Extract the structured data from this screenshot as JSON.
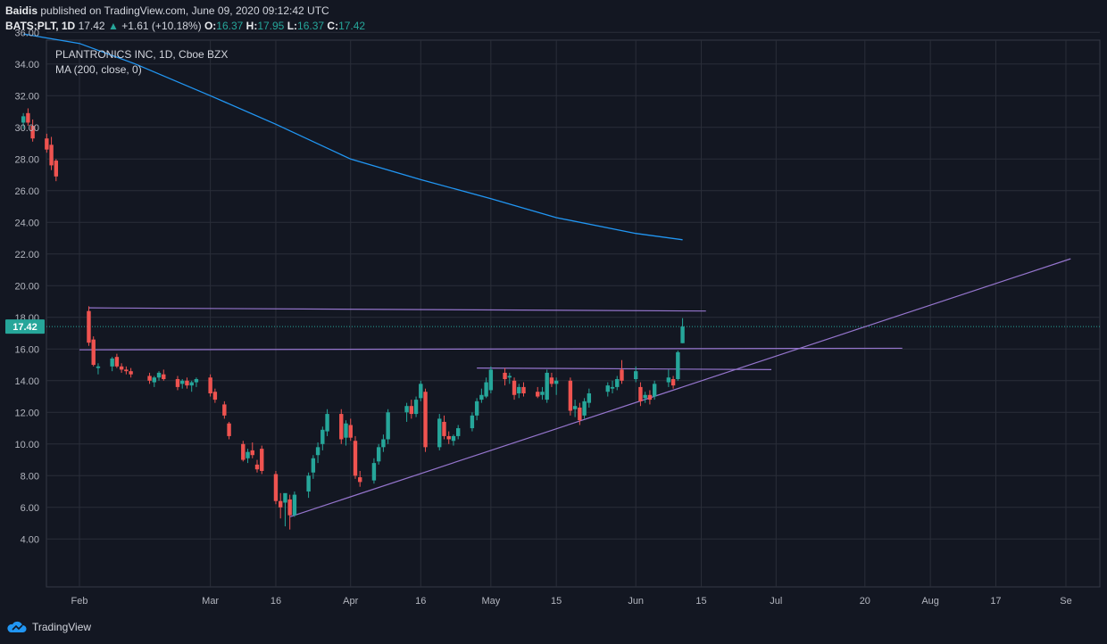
{
  "header": {
    "author": "Baidis",
    "published_text": "published on TradingView.com, June 09, 2020 09:12:42 UTC",
    "symbol": "BATS:PLT, 1D",
    "last": "17.42",
    "change": "+1.61 (+10.18%)",
    "o_label": "O:",
    "o_value": "16.37",
    "h_label": "H:",
    "h_value": "17.95",
    "l_label": "L:",
    "l_value": "16.37",
    "c_label": "C:",
    "c_value": "17.42"
  },
  "legend": {
    "title": "PLANTRONICS INC, 1D, Cboe BZX",
    "indicator": "MA (200, close, 0)"
  },
  "footer": {
    "brand": "TradingView"
  },
  "colors": {
    "background": "#131722",
    "grid": "#2a2e39",
    "up": "#26a69a",
    "down": "#ef5350",
    "ma": "#2196f3",
    "trendline": "#9575cd",
    "axis_text": "#b2b5be",
    "price_tag": "#26a69a"
  },
  "chart_data": {
    "type": "candlestick",
    "title": "PLANTRONICS INC, 1D, Cboe BZX",
    "ylim": [
      3,
      39.5
    ],
    "y_ticks": [
      "4.00",
      "6.00",
      "8.00",
      "10.00",
      "12.00",
      "14.00",
      "16.00",
      "18.00",
      "20.00",
      "22.00",
      "24.00",
      "26.00",
      "28.00",
      "30.00",
      "32.00",
      "34.00",
      "36.00"
    ],
    "x_tick_labels": [
      "Feb",
      "Mar",
      "16",
      "Apr",
      "16",
      "May",
      "15",
      "Jun",
      "15",
      "Jul",
      "20",
      "Aug",
      "17",
      "Se"
    ],
    "x_tick_dates": [
      "2020-02-03",
      "2020-03-02",
      "2020-03-16",
      "2020-04-01",
      "2020-04-16",
      "2020-05-01",
      "2020-05-15",
      "2020-06-01",
      "2020-06-15",
      "2020-07-01",
      "2020-07-20",
      "2020-08-03",
      "2020-08-17",
      "2020-09-01"
    ],
    "last_price_label": "17.42",
    "last_price": 17.42,
    "candles": [
      {
        "d": "2020-01-22",
        "o": 30.3,
        "h": 30.9,
        "l": 29.9,
        "c": 30.7
      },
      {
        "d": "2020-01-23",
        "o": 30.9,
        "h": 31.2,
        "l": 30.1,
        "c": 30.3
      },
      {
        "d": "2020-01-24",
        "o": 30.1,
        "h": 30.5,
        "l": 29.1,
        "c": 29.3
      },
      {
        "d": "2020-01-27",
        "o": 29.3,
        "h": 29.6,
        "l": 28.4,
        "c": 28.6
      },
      {
        "d": "2020-01-28",
        "o": 28.9,
        "h": 29.4,
        "l": 27.3,
        "c": 27.6
      },
      {
        "d": "2020-01-29",
        "o": 27.9,
        "h": 28.0,
        "l": 26.6,
        "c": 26.9
      },
      {
        "d": "2020-02-05",
        "o": 18.4,
        "h": 18.7,
        "l": 16.2,
        "c": 16.4
      },
      {
        "d": "2020-02-06",
        "o": 16.6,
        "h": 16.8,
        "l": 14.9,
        "c": 15.0
      },
      {
        "d": "2020-02-07",
        "o": 14.8,
        "h": 15.1,
        "l": 14.4,
        "c": 14.9
      },
      {
        "d": "2020-02-10",
        "o": 14.9,
        "h": 15.5,
        "l": 14.6,
        "c": 15.4
      },
      {
        "d": "2020-02-11",
        "o": 15.5,
        "h": 15.7,
        "l": 14.8,
        "c": 14.9
      },
      {
        "d": "2020-02-12",
        "o": 14.9,
        "h": 15.1,
        "l": 14.5,
        "c": 14.7
      },
      {
        "d": "2020-02-13",
        "o": 14.7,
        "h": 14.9,
        "l": 14.4,
        "c": 14.6
      },
      {
        "d": "2020-02-14",
        "o": 14.6,
        "h": 14.8,
        "l": 14.2,
        "c": 14.4
      },
      {
        "d": "2020-02-18",
        "o": 14.3,
        "h": 14.5,
        "l": 13.8,
        "c": 14.0
      },
      {
        "d": "2020-02-19",
        "o": 13.9,
        "h": 14.3,
        "l": 13.6,
        "c": 14.2
      },
      {
        "d": "2020-02-20",
        "o": 14.2,
        "h": 14.6,
        "l": 14.0,
        "c": 14.5
      },
      {
        "d": "2020-02-21",
        "o": 14.4,
        "h": 14.7,
        "l": 14.0,
        "c": 14.1
      },
      {
        "d": "2020-02-24",
        "o": 14.1,
        "h": 14.3,
        "l": 13.4,
        "c": 13.6
      },
      {
        "d": "2020-02-25",
        "o": 13.8,
        "h": 14.1,
        "l": 13.5,
        "c": 14.0
      },
      {
        "d": "2020-02-26",
        "o": 14.0,
        "h": 14.2,
        "l": 13.5,
        "c": 13.7
      },
      {
        "d": "2020-02-27",
        "o": 13.7,
        "h": 14.0,
        "l": 13.3,
        "c": 13.9
      },
      {
        "d": "2020-02-28",
        "o": 13.9,
        "h": 14.2,
        "l": 13.6,
        "c": 14.1
      },
      {
        "d": "2020-03-02",
        "o": 14.2,
        "h": 14.4,
        "l": 13.0,
        "c": 13.2
      },
      {
        "d": "2020-03-03",
        "o": 13.3,
        "h": 13.5,
        "l": 12.6,
        "c": 12.8
      },
      {
        "d": "2020-03-05",
        "o": 12.5,
        "h": 12.7,
        "l": 11.6,
        "c": 11.8
      },
      {
        "d": "2020-03-06",
        "o": 11.3,
        "h": 11.4,
        "l": 10.3,
        "c": 10.5
      },
      {
        "d": "2020-03-09",
        "o": 10.0,
        "h": 10.2,
        "l": 8.9,
        "c": 9.0
      },
      {
        "d": "2020-03-10",
        "o": 9.1,
        "h": 9.7,
        "l": 8.8,
        "c": 9.5
      },
      {
        "d": "2020-03-11",
        "o": 9.6,
        "h": 10.1,
        "l": 9.1,
        "c": 9.3
      },
      {
        "d": "2020-03-12",
        "o": 8.7,
        "h": 9.0,
        "l": 8.2,
        "c": 8.4
      },
      {
        "d": "2020-03-13",
        "o": 9.7,
        "h": 9.9,
        "l": 8.1,
        "c": 8.3
      },
      {
        "d": "2020-03-16",
        "o": 8.1,
        "h": 8.3,
        "l": 6.2,
        "c": 6.4
      },
      {
        "d": "2020-03-17",
        "o": 6.4,
        "h": 6.9,
        "l": 5.3,
        "c": 6.0
      },
      {
        "d": "2020-03-18",
        "o": 6.3,
        "h": 6.7,
        "l": 4.8,
        "c": 6.9
      },
      {
        "d": "2020-03-19",
        "o": 6.5,
        "h": 6.8,
        "l": 4.6,
        "c": 5.5
      },
      {
        "d": "2020-03-20",
        "o": 5.5,
        "h": 7.0,
        "l": 5.4,
        "c": 6.8
      },
      {
        "d": "2020-03-23",
        "o": 7.0,
        "h": 8.2,
        "l": 6.6,
        "c": 8.0
      },
      {
        "d": "2020-03-24",
        "o": 8.2,
        "h": 9.3,
        "l": 7.8,
        "c": 9.1
      },
      {
        "d": "2020-03-25",
        "o": 9.3,
        "h": 10.1,
        "l": 8.8,
        "c": 9.8
      },
      {
        "d": "2020-03-26",
        "o": 10.0,
        "h": 11.1,
        "l": 9.6,
        "c": 10.9
      },
      {
        "d": "2020-03-27",
        "o": 10.8,
        "h": 12.2,
        "l": 10.5,
        "c": 11.9
      },
      {
        "d": "2020-03-30",
        "o": 11.9,
        "h": 12.2,
        "l": 10.0,
        "c": 10.3
      },
      {
        "d": "2020-03-31",
        "o": 10.4,
        "h": 11.5,
        "l": 9.9,
        "c": 11.3
      },
      {
        "d": "2020-04-01",
        "o": 11.2,
        "h": 11.6,
        "l": 10.2,
        "c": 10.4
      },
      {
        "d": "2020-04-02",
        "o": 10.2,
        "h": 10.5,
        "l": 7.8,
        "c": 8.0
      },
      {
        "d": "2020-04-03",
        "o": 7.9,
        "h": 8.3,
        "l": 7.3,
        "c": 7.6
      },
      {
        "d": "2020-04-06",
        "o": 7.7,
        "h": 9.1,
        "l": 7.5,
        "c": 8.8
      },
      {
        "d": "2020-04-07",
        "o": 8.9,
        "h": 10.0,
        "l": 8.7,
        "c": 9.8
      },
      {
        "d": "2020-04-08",
        "o": 9.8,
        "h": 10.6,
        "l": 9.5,
        "c": 10.3
      },
      {
        "d": "2020-04-09",
        "o": 10.3,
        "h": 12.2,
        "l": 10.0,
        "c": 12.0
      },
      {
        "d": "2020-04-13",
        "o": 12.0,
        "h": 12.6,
        "l": 11.4,
        "c": 12.4
      },
      {
        "d": "2020-04-14",
        "o": 12.4,
        "h": 12.8,
        "l": 11.6,
        "c": 11.9
      },
      {
        "d": "2020-04-15",
        "o": 11.9,
        "h": 13.0,
        "l": 11.7,
        "c": 12.8
      },
      {
        "d": "2020-04-16",
        "o": 12.9,
        "h": 14.0,
        "l": 12.7,
        "c": 13.8
      },
      {
        "d": "2020-04-17",
        "o": 13.3,
        "h": 13.5,
        "l": 9.5,
        "c": 9.8
      },
      {
        "d": "2020-04-20",
        "o": 9.8,
        "h": 11.9,
        "l": 9.6,
        "c": 11.6
      },
      {
        "d": "2020-04-21",
        "o": 11.4,
        "h": 11.8,
        "l": 10.3,
        "c": 10.5
      },
      {
        "d": "2020-04-22",
        "o": 10.5,
        "h": 10.8,
        "l": 10.0,
        "c": 10.3
      },
      {
        "d": "2020-04-23",
        "o": 10.2,
        "h": 10.6,
        "l": 9.9,
        "c": 10.5
      },
      {
        "d": "2020-04-24",
        "o": 10.5,
        "h": 11.2,
        "l": 10.3,
        "c": 11.0
      },
      {
        "d": "2020-04-27",
        "o": 11.0,
        "h": 12.0,
        "l": 10.8,
        "c": 11.8
      },
      {
        "d": "2020-04-28",
        "o": 11.8,
        "h": 12.9,
        "l": 11.5,
        "c": 12.7
      },
      {
        "d": "2020-04-29",
        "o": 12.8,
        "h": 13.5,
        "l": 12.6,
        "c": 13.1
      },
      {
        "d": "2020-04-30",
        "o": 13.0,
        "h": 14.2,
        "l": 12.9,
        "c": 13.9
      },
      {
        "d": "2020-05-01",
        "o": 13.4,
        "h": 14.9,
        "l": 13.2,
        "c": 14.7
      },
      {
        "d": "2020-05-04",
        "o": 14.5,
        "h": 14.8,
        "l": 13.7,
        "c": 14.1
      },
      {
        "d": "2020-05-05",
        "o": 14.2,
        "h": 14.5,
        "l": 13.8,
        "c": 14.3
      },
      {
        "d": "2020-05-06",
        "o": 14.0,
        "h": 14.2,
        "l": 12.8,
        "c": 13.1
      },
      {
        "d": "2020-05-07",
        "o": 13.2,
        "h": 13.8,
        "l": 12.9,
        "c": 13.6
      },
      {
        "d": "2020-05-08",
        "o": 13.6,
        "h": 13.9,
        "l": 13.0,
        "c": 13.2
      },
      {
        "d": "2020-05-11",
        "o": 13.3,
        "h": 13.6,
        "l": 12.9,
        "c": 13.0
      },
      {
        "d": "2020-05-12",
        "o": 13.1,
        "h": 13.6,
        "l": 12.8,
        "c": 13.3
      },
      {
        "d": "2020-05-13",
        "o": 12.8,
        "h": 14.7,
        "l": 12.6,
        "c": 14.5
      },
      {
        "d": "2020-05-14",
        "o": 14.2,
        "h": 14.5,
        "l": 13.6,
        "c": 13.8
      },
      {
        "d": "2020-05-15",
        "o": 13.8,
        "h": 14.2,
        "l": 13.1,
        "c": 14.0
      },
      {
        "d": "2020-05-18",
        "o": 14.0,
        "h": 14.2,
        "l": 11.8,
        "c": 12.1
      },
      {
        "d": "2020-05-19",
        "o": 12.2,
        "h": 12.8,
        "l": 11.7,
        "c": 12.4
      },
      {
        "d": "2020-05-20",
        "o": 12.3,
        "h": 12.6,
        "l": 11.2,
        "c": 11.5
      },
      {
        "d": "2020-05-21",
        "o": 11.8,
        "h": 12.9,
        "l": 11.6,
        "c": 12.7
      },
      {
        "d": "2020-05-22",
        "o": 12.6,
        "h": 13.5,
        "l": 12.3,
        "c": 13.2
      },
      {
        "d": "2020-05-26",
        "o": 13.3,
        "h": 13.9,
        "l": 13.0,
        "c": 13.7
      },
      {
        "d": "2020-05-27",
        "o": 13.5,
        "h": 14.0,
        "l": 13.2,
        "c": 13.6
      },
      {
        "d": "2020-05-28",
        "o": 13.6,
        "h": 14.3,
        "l": 13.4,
        "c": 14.1
      },
      {
        "d": "2020-05-29",
        "o": 14.7,
        "h": 15.3,
        "l": 13.8,
        "c": 14.0
      },
      {
        "d": "2020-06-01",
        "o": 14.1,
        "h": 14.9,
        "l": 13.9,
        "c": 14.6
      },
      {
        "d": "2020-06-02",
        "o": 13.6,
        "h": 13.9,
        "l": 12.4,
        "c": 12.7
      },
      {
        "d": "2020-06-03",
        "o": 12.9,
        "h": 13.3,
        "l": 12.6,
        "c": 13.1
      },
      {
        "d": "2020-06-04",
        "o": 13.1,
        "h": 13.4,
        "l": 12.5,
        "c": 12.8
      },
      {
        "d": "2020-06-05",
        "o": 13.0,
        "h": 14.0,
        "l": 12.8,
        "c": 13.8
      },
      {
        "d": "2020-06-08",
        "o": 13.9,
        "h": 14.7,
        "l": 13.6,
        "c": 14.2
      },
      {
        "d": "2020-06-09",
        "o": 14.1,
        "h": 14.3,
        "l": 13.5,
        "c": 13.7
      },
      {
        "d": "2020-06-10",
        "o": 14.1,
        "h": 15.9,
        "l": 14.0,
        "c": 15.8
      },
      {
        "d": "2020-06-11",
        "o": 16.37,
        "h": 17.95,
        "l": 16.37,
        "c": 17.42
      }
    ],
    "ma200": {
      "name": "MA (200, close, 0)",
      "points": [
        {
          "d": "2020-01-22",
          "v": 35.9
        },
        {
          "d": "2020-02-03",
          "v": 35.3
        },
        {
          "d": "2020-02-15",
          "v": 34.0
        },
        {
          "d": "2020-03-02",
          "v": 32.0
        },
        {
          "d": "2020-03-16",
          "v": 30.2
        },
        {
          "d": "2020-04-01",
          "v": 28.0
        },
        {
          "d": "2020-04-16",
          "v": 26.7
        },
        {
          "d": "2020-05-01",
          "v": 25.5
        },
        {
          "d": "2020-05-15",
          "v": 24.3
        },
        {
          "d": "2020-06-01",
          "v": 23.3
        },
        {
          "d": "2020-06-11",
          "v": 22.9
        }
      ]
    },
    "trendlines": [
      {
        "from": {
          "d": "2020-02-05",
          "v": 18.6
        },
        "to": {
          "d": "2020-06-16",
          "v": 18.4
        }
      },
      {
        "from": {
          "d": "2020-02-03",
          "v": 15.95
        },
        "to": {
          "d": "2020-07-28",
          "v": 16.05
        }
      },
      {
        "from": {
          "d": "2020-04-28",
          "v": 14.8
        },
        "to": {
          "d": "2020-06-30",
          "v": 14.7
        }
      },
      {
        "from": {
          "d": "2020-03-19",
          "v": 5.4
        },
        "to": {
          "d": "2020-09-02",
          "v": 21.7
        }
      }
    ]
  }
}
